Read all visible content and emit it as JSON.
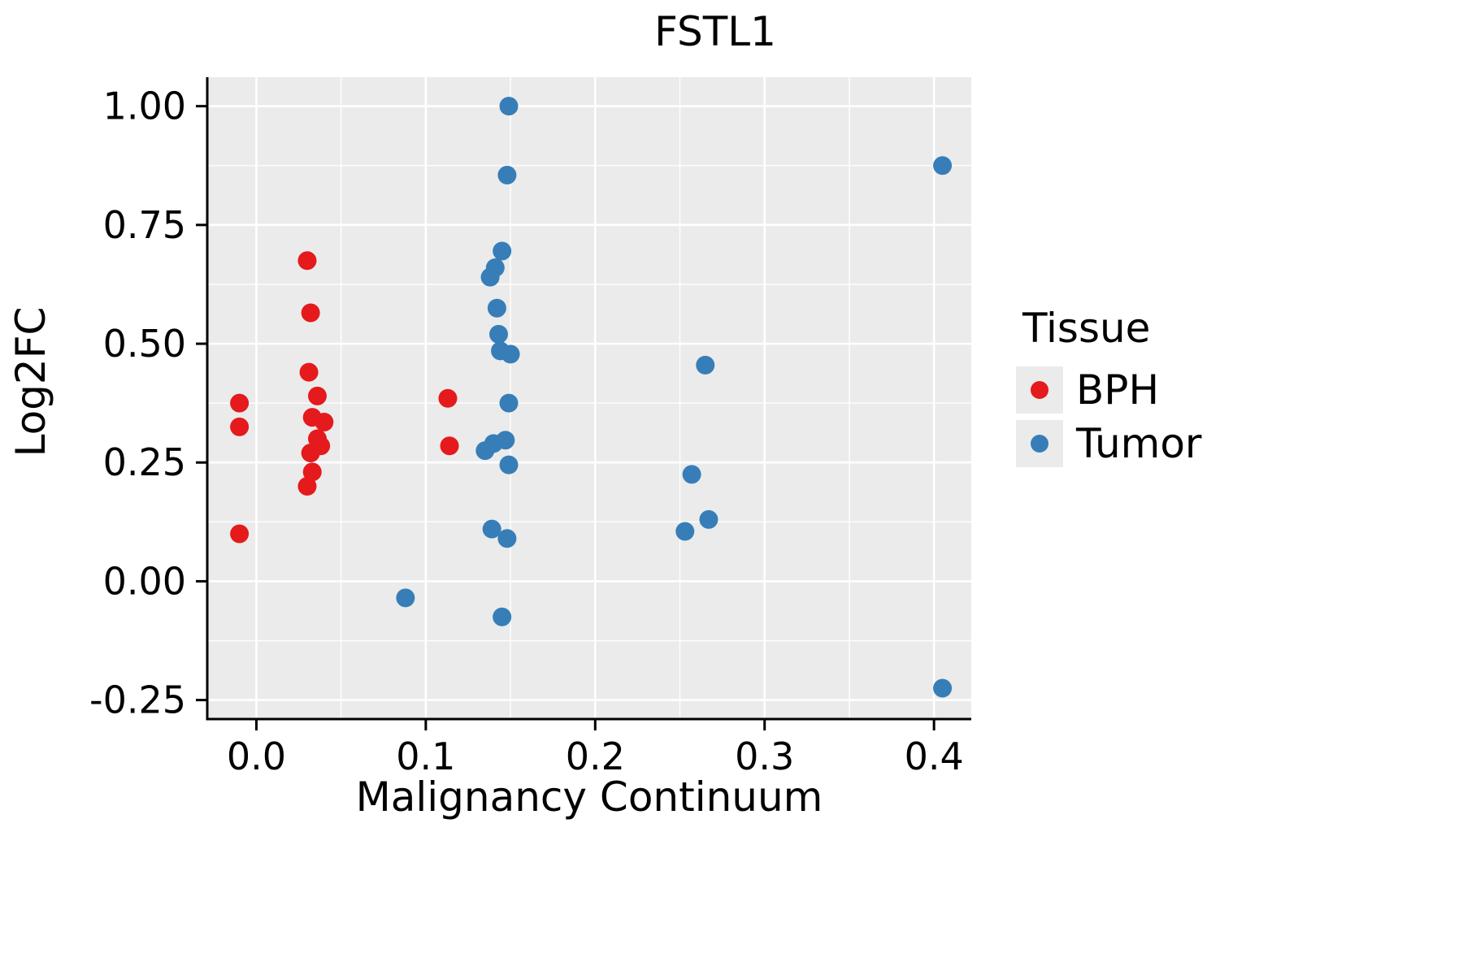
{
  "chart_data": {
    "type": "scatter",
    "title": "FSTL1",
    "xlabel": "Malignancy Continuum",
    "ylabel": "Log2FC",
    "xlim": [
      -0.029,
      0.422
    ],
    "ylim": [
      -0.29,
      1.061
    ],
    "x_ticks": [
      0.0,
      0.1,
      0.2,
      0.3,
      0.4
    ],
    "x_tick_labels": [
      "0.0",
      "0.1",
      "0.2",
      "0.3",
      "0.4"
    ],
    "x_minor_ticks": [
      0.05,
      0.15,
      0.25,
      0.35
    ],
    "y_ticks": [
      -0.25,
      0.0,
      0.25,
      0.5,
      0.75,
      1.0
    ],
    "y_tick_labels": [
      "-0.25",
      "0.00",
      "0.25",
      "0.50",
      "0.75",
      "1.00"
    ],
    "y_minor_ticks": [
      -0.125,
      0.125,
      0.375,
      0.625,
      0.875
    ],
    "grid": "major+minor",
    "panel_background": "#ebebeb",
    "grid_color": "#ffffff",
    "axis_color": "#000000",
    "legend": {
      "title": "Tissue",
      "position": "right",
      "entries": [
        {
          "label": "BPH",
          "color": "#e41a1c"
        },
        {
          "label": "Tumor",
          "color": "#377eb8"
        }
      ]
    },
    "series": [
      {
        "name": "BPH",
        "color": "#e41a1c",
        "points": [
          [
            -0.01,
            0.375
          ],
          [
            -0.01,
            0.325
          ],
          [
            -0.01,
            0.1
          ],
          [
            0.03,
            0.675
          ],
          [
            0.032,
            0.565
          ],
          [
            0.031,
            0.44
          ],
          [
            0.036,
            0.39
          ],
          [
            0.033,
            0.345
          ],
          [
            0.04,
            0.335
          ],
          [
            0.036,
            0.3
          ],
          [
            0.038,
            0.285
          ],
          [
            0.032,
            0.27
          ],
          [
            0.033,
            0.23
          ],
          [
            0.03,
            0.2
          ],
          [
            0.113,
            0.385
          ],
          [
            0.114,
            0.285
          ]
        ]
      },
      {
        "name": "Tumor",
        "color": "#377eb8",
        "points": [
          [
            0.088,
            -0.035
          ],
          [
            0.149,
            1.0
          ],
          [
            0.148,
            0.855
          ],
          [
            0.145,
            0.695
          ],
          [
            0.141,
            0.66
          ],
          [
            0.138,
            0.64
          ],
          [
            0.142,
            0.575
          ],
          [
            0.143,
            0.52
          ],
          [
            0.144,
            0.485
          ],
          [
            0.15,
            0.478
          ],
          [
            0.149,
            0.375
          ],
          [
            0.147,
            0.297
          ],
          [
            0.14,
            0.29
          ],
          [
            0.135,
            0.275
          ],
          [
            0.149,
            0.245
          ],
          [
            0.139,
            0.11
          ],
          [
            0.148,
            0.09
          ],
          [
            0.145,
            -0.075
          ],
          [
            0.265,
            0.455
          ],
          [
            0.257,
            0.225
          ],
          [
            0.267,
            0.13
          ],
          [
            0.253,
            0.105
          ],
          [
            0.405,
            0.875
          ],
          [
            0.405,
            -0.225
          ]
        ]
      }
    ]
  }
}
